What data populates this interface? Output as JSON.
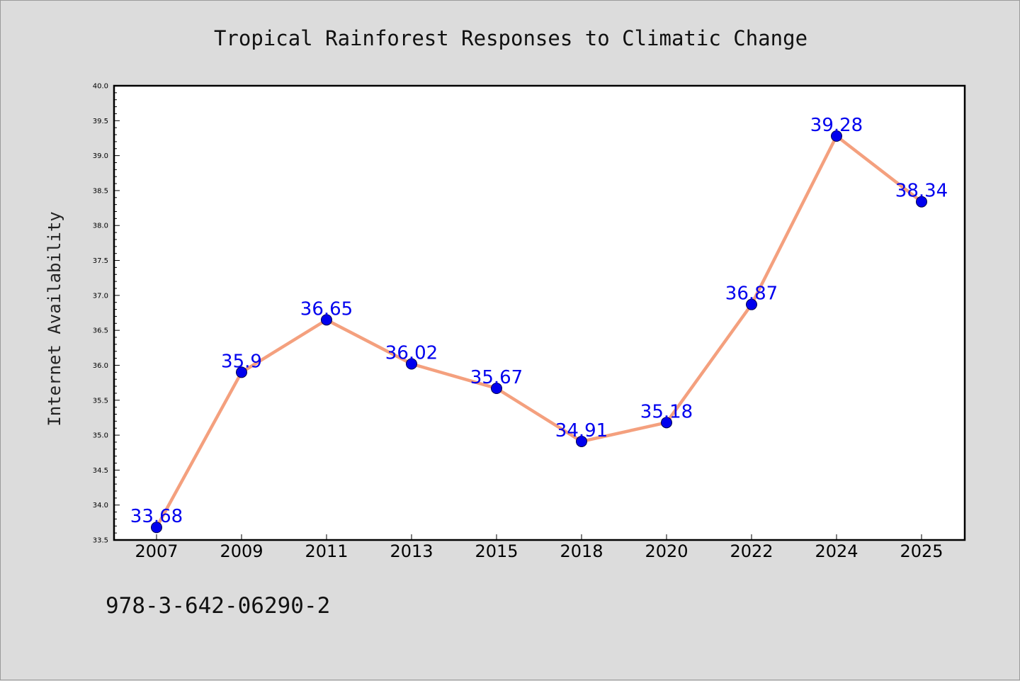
{
  "chart_data": {
    "type": "line",
    "title": "Tropical Rainforest Responses to Climatic Change",
    "xlabel": "",
    "ylabel": "Internet Availability",
    "categories": [
      "2007",
      "2009",
      "2011",
      "2013",
      "2015",
      "2018",
      "2020",
      "2022",
      "2024",
      "2025"
    ],
    "series": [
      {
        "values": [
          33.68,
          35.9,
          36.65,
          36.02,
          35.67,
          34.91,
          35.18,
          36.87,
          39.28,
          38.34
        ],
        "labels": [
          "33.68",
          "35.9",
          "36.65",
          "36.02",
          "35.67",
          "34.91",
          "35.18",
          "36.87",
          "39.28",
          "38.34"
        ],
        "line_color": "#f4a07e",
        "marker_color": "#0000ee",
        "label_color": "#0000ee"
      }
    ],
    "ylim": [
      33.5,
      40.0
    ],
    "yticks": [
      "33.5",
      "34.0",
      "34.5",
      "35.0",
      "35.5",
      "36.0",
      "36.5",
      "37.0",
      "37.5",
      "38.0",
      "38.5",
      "39.0",
      "39.5",
      "40.0"
    ],
    "grid": false,
    "legend": "none",
    "background_color": "#dcdcdc",
    "plot_background_color": "#ffffff"
  },
  "footer_text": "978-3-642-06290-2"
}
